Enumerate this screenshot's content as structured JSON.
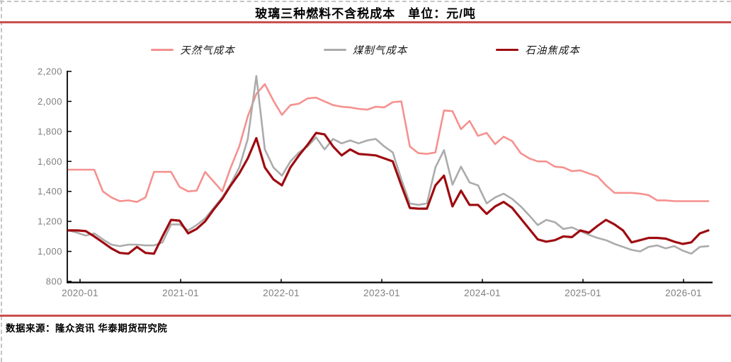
{
  "page": {
    "title": "玻璃三种燃料不含税成本　单位：元/吨",
    "source": "数据来源：隆众资讯 华泰期货研究院"
  },
  "colors": {
    "accent_rule": "#c9504e",
    "natural_gas": "#f5918f",
    "coal_gas": "#ababab",
    "pet_coke": "#9e0b10",
    "axis": "#000000",
    "tick_label": "#7f7f7f",
    "dashed_border": "#c4c4c4"
  },
  "chart_data": {
    "type": "line",
    "title": "玻璃三种燃料不含税成本",
    "unit_label": "单位：元/吨",
    "grid": false,
    "legend_position": "top",
    "ylim": [
      800,
      2200
    ],
    "yticks": [
      800,
      1000,
      1200,
      1400,
      1600,
      1800,
      2000,
      2200
    ],
    "ytick_labels": [
      "800",
      "1,000",
      "1,200",
      "1,400",
      "1,600",
      "1,800",
      "2,000",
      "2,200"
    ],
    "xtick_labels": [
      "2020-01",
      "2021-01",
      "2022-01",
      "2023-01",
      "2024-01",
      "2025-01",
      "2026-01"
    ],
    "x": [
      "2020-01",
      "2020-02",
      "2020-03",
      "2020-04",
      "2020-05",
      "2020-06",
      "2020-07",
      "2020-08",
      "2020-09",
      "2020-10",
      "2020-11",
      "2020-12",
      "2021-01",
      "2021-02",
      "2021-03",
      "2021-04",
      "2021-05",
      "2021-06",
      "2021-07",
      "2021-08",
      "2021-09",
      "2021-10",
      "2021-11",
      "2021-12",
      "2022-01",
      "2022-02",
      "2022-03",
      "2022-04",
      "2022-05",
      "2022-06",
      "2022-07",
      "2022-08",
      "2022-09",
      "2022-10",
      "2022-11",
      "2022-12",
      "2023-01",
      "2023-02",
      "2023-03",
      "2023-04",
      "2023-05",
      "2023-06",
      "2023-07",
      "2023-08",
      "2023-09",
      "2023-10",
      "2023-11",
      "2023-12",
      "2024-01",
      "2024-02",
      "2024-03",
      "2024-04",
      "2024-05",
      "2024-06",
      "2024-07",
      "2024-08",
      "2024-09",
      "2024-10",
      "2024-11",
      "2024-12",
      "2025-01",
      "2025-02",
      "2025-03",
      "2025-04",
      "2025-05",
      "2025-06",
      "2025-07",
      "2025-08",
      "2025-09",
      "2025-10",
      "2025-11",
      "2025-12",
      "2026-01",
      "2026-02",
      "2026-03",
      "2026-04"
    ],
    "series": [
      {
        "name": "天然气成本",
        "color_key": "natural_gas",
        "stroke_width": 2.6,
        "values": [
          1545,
          1545,
          1545,
          1545,
          1400,
          1360,
          1335,
          1340,
          1330,
          1360,
          1530,
          1530,
          1530,
          1430,
          1400,
          1405,
          1530,
          1465,
          1400,
          1560,
          1700,
          1900,
          2050,
          2115,
          2005,
          1910,
          1975,
          1985,
          2020,
          2025,
          2000,
          1975,
          1965,
          1960,
          1950,
          1945,
          1965,
          1960,
          1995,
          2000,
          1700,
          1655,
          1650,
          1660,
          1940,
          1935,
          1815,
          1870,
          1770,
          1790,
          1715,
          1765,
          1735,
          1655,
          1620,
          1600,
          1600,
          1565,
          1560,
          1535,
          1540,
          1520,
          1500,
          1440,
          1390,
          1390,
          1390,
          1385,
          1375,
          1340,
          1340,
          1335,
          1335,
          1335,
          1335,
          1335
        ]
      },
      {
        "name": "煤制气成本",
        "color_key": "coal_gas",
        "stroke_width": 2.6,
        "values": [
          1140,
          1125,
          1105,
          1120,
          1080,
          1045,
          1035,
          1045,
          1045,
          1040,
          1040,
          1060,
          1180,
          1180,
          1140,
          1175,
          1220,
          1290,
          1360,
          1450,
          1560,
          1750,
          2170,
          1680,
          1560,
          1505,
          1600,
          1660,
          1700,
          1760,
          1680,
          1750,
          1720,
          1740,
          1720,
          1740,
          1750,
          1700,
          1660,
          1480,
          1320,
          1310,
          1320,
          1560,
          1675,
          1445,
          1565,
          1460,
          1440,
          1320,
          1360,
          1385,
          1350,
          1300,
          1240,
          1175,
          1210,
          1195,
          1150,
          1160,
          1135,
          1110,
          1090,
          1075,
          1050,
          1030,
          1010,
          1000,
          1030,
          1040,
          1020,
          1035,
          1005,
          985,
          1030,
          1035
        ]
      },
      {
        "name": "石油焦成本",
        "color_key": "pet_coke",
        "stroke_width": 3.2,
        "values": [
          1140,
          1140,
          1135,
          1100,
          1060,
          1020,
          990,
          985,
          1030,
          990,
          985,
          1100,
          1210,
          1205,
          1120,
          1150,
          1200,
          1280,
          1350,
          1440,
          1520,
          1620,
          1755,
          1560,
          1480,
          1440,
          1560,
          1640,
          1710,
          1790,
          1780,
          1700,
          1640,
          1680,
          1650,
          1645,
          1640,
          1620,
          1600,
          1440,
          1290,
          1285,
          1285,
          1440,
          1505,
          1300,
          1405,
          1310,
          1310,
          1250,
          1300,
          1330,
          1290,
          1220,
          1150,
          1080,
          1065,
          1075,
          1100,
          1095,
          1140,
          1125,
          1170,
          1210,
          1180,
          1140,
          1060,
          1075,
          1090,
          1090,
          1085,
          1065,
          1050,
          1060,
          1120,
          1140
        ]
      }
    ]
  }
}
